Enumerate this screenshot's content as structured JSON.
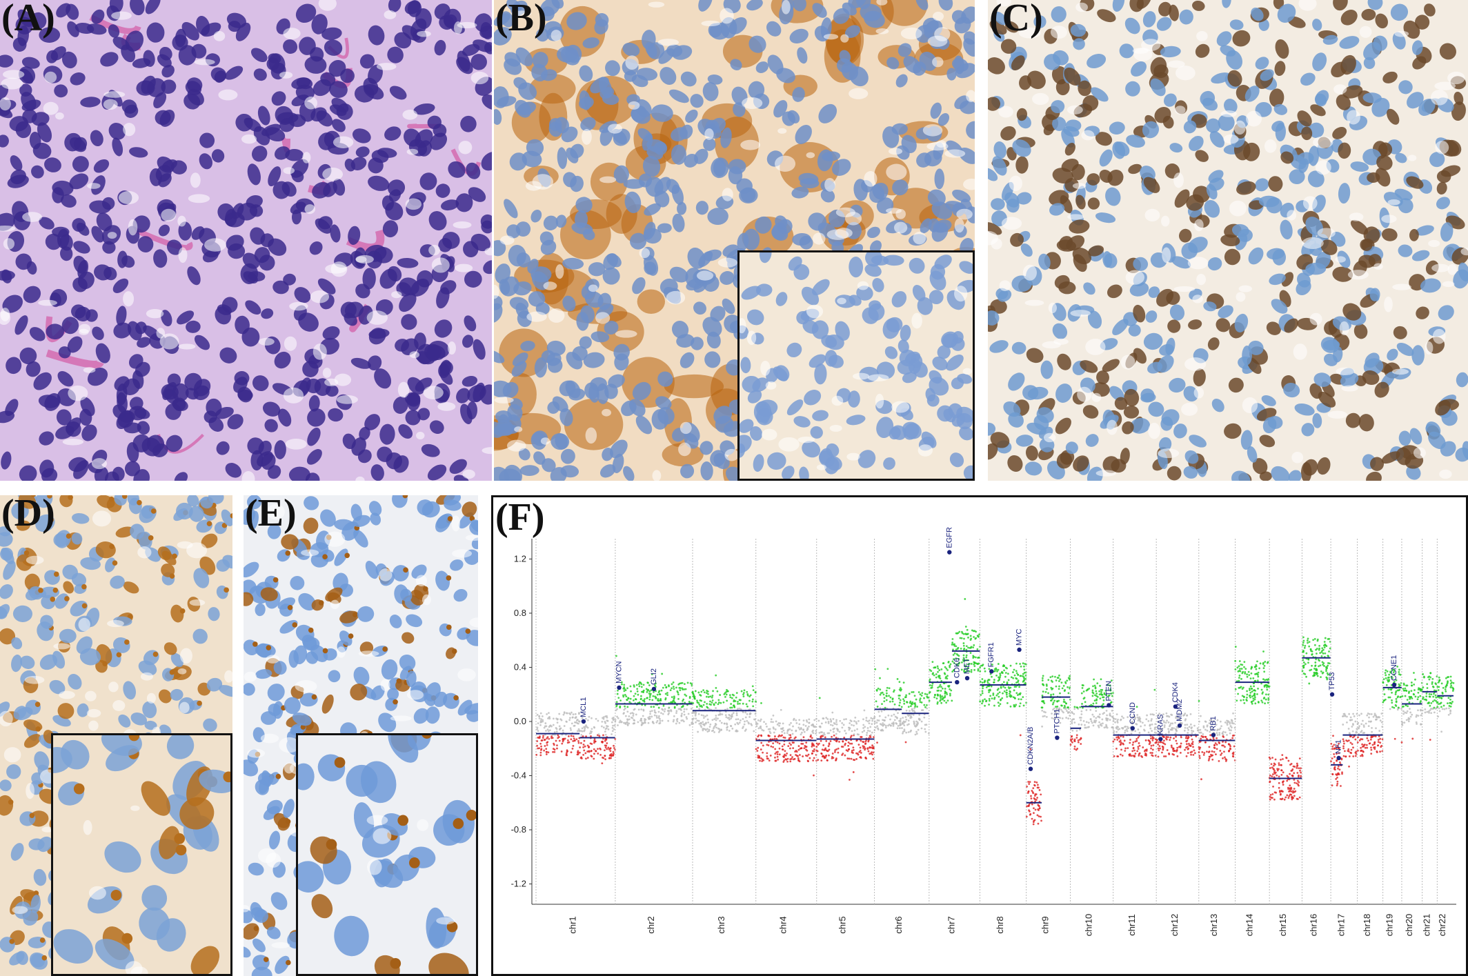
{
  "panels": {
    "A": {
      "letter": "(A)",
      "stain": "H&E",
      "colors": {
        "bg": "#d9bfe6",
        "nuclei": "#3b2a8c",
        "stroma": "#d24a9a"
      }
    },
    "B": {
      "letter": "(B)",
      "stain": "IHC",
      "colors": {
        "bg": "#f1dcc2",
        "positive": "#b8640f",
        "nuclei": "#6f8fc8"
      },
      "inset": true
    },
    "C": {
      "letter": "(C)",
      "stain": "IHC",
      "colors": {
        "bg": "#f3ece2",
        "positive": "#6b4a2b",
        "nuclei": "#6f9bd0"
      }
    },
    "D": {
      "letter": "(D)",
      "stain": "IHC",
      "colors": {
        "bg": "#f0e1cc",
        "positive": "#b56e1d",
        "nuclei": "#7ba2d6"
      },
      "inset": true
    },
    "E": {
      "letter": "(E)",
      "stain": "IHC",
      "colors": {
        "bg": "#eef0f4",
        "positive": "#a45f16",
        "nuclei": "#6f9ad8"
      },
      "inset": true
    },
    "F": {
      "letter": "(F)"
    }
  },
  "chart_data": {
    "type": "scatter",
    "title": "",
    "xlabel": "",
    "ylabel": "",
    "ylim": [
      -1.35,
      1.35
    ],
    "yticks": [
      "1.2",
      "0.8",
      "0.4",
      "0.0",
      "-0.4",
      "-0.8",
      "-1.2"
    ],
    "ytick_values": [
      1.2,
      0.8,
      0.4,
      0.0,
      -0.4,
      -0.8,
      -1.2
    ],
    "colors": {
      "gain": "#22cc22",
      "loss": "#dd2222",
      "neutral": "#bbbbbb",
      "segment": "#1a237e",
      "gene": "#1a237e"
    },
    "chromosomes": [
      {
        "name": "chr1",
        "size": 248,
        "segments": [
          {
            "from": 0,
            "to": 0.55,
            "value": -0.09
          },
          {
            "from": 0.55,
            "to": 1,
            "value": -0.12
          }
        ]
      },
      {
        "name": "chr2",
        "size": 242,
        "segments": [
          {
            "from": 0,
            "to": 1,
            "value": 0.13
          }
        ]
      },
      {
        "name": "chr3",
        "size": 198,
        "segments": [
          {
            "from": 0,
            "to": 1,
            "value": 0.08
          }
        ]
      },
      {
        "name": "chr4",
        "size": 190,
        "segments": [
          {
            "from": 0,
            "to": 1,
            "value": -0.14
          }
        ]
      },
      {
        "name": "chr5",
        "size": 181,
        "segments": [
          {
            "from": 0,
            "to": 1,
            "value": -0.13
          }
        ]
      },
      {
        "name": "chr6",
        "size": 171,
        "segments": [
          {
            "from": 0,
            "to": 0.5,
            "value": 0.09
          },
          {
            "from": 0.5,
            "to": 1,
            "value": 0.06
          }
        ]
      },
      {
        "name": "chr7",
        "size": 159,
        "segments": [
          {
            "from": 0,
            "to": 0.45,
            "value": 0.29
          },
          {
            "from": 0.45,
            "to": 1,
            "value": 0.52
          }
        ]
      },
      {
        "name": "chr8",
        "size": 145,
        "segments": [
          {
            "from": 0,
            "to": 1,
            "value": 0.27
          }
        ]
      },
      {
        "name": "chr9",
        "size": 138,
        "segments": [
          {
            "from": 0,
            "to": 0.35,
            "value": -0.6
          },
          {
            "from": 0.35,
            "to": 1,
            "value": 0.18
          }
        ]
      },
      {
        "name": "chr10",
        "size": 134,
        "segments": [
          {
            "from": 0,
            "to": 0.25,
            "value": -0.05
          },
          {
            "from": 0.25,
            "to": 1,
            "value": 0.11
          }
        ]
      },
      {
        "name": "chr11",
        "size": 135,
        "segments": [
          {
            "from": 0,
            "to": 1,
            "value": -0.1
          }
        ]
      },
      {
        "name": "chr12",
        "size": 133,
        "segments": [
          {
            "from": 0,
            "to": 1,
            "value": -0.1
          }
        ]
      },
      {
        "name": "chr13",
        "size": 114,
        "segments": [
          {
            "from": 0,
            "to": 1,
            "value": -0.14
          }
        ]
      },
      {
        "name": "chr14",
        "size": 107,
        "segments": [
          {
            "from": 0,
            "to": 1,
            "value": 0.29
          }
        ]
      },
      {
        "name": "chr15",
        "size": 102,
        "segments": [
          {
            "from": 0,
            "to": 1,
            "value": -0.42
          }
        ]
      },
      {
        "name": "chr16",
        "size": 90,
        "segments": [
          {
            "from": 0,
            "to": 1,
            "value": 0.47
          }
        ]
      },
      {
        "name": "chr17",
        "size": 83,
        "segments": [
          {
            "from": 0,
            "to": 0.45,
            "value": -0.32
          },
          {
            "from": 0.45,
            "to": 1,
            "value": -0.1
          }
        ]
      },
      {
        "name": "chr18",
        "size": 80,
        "segments": [
          {
            "from": 0,
            "to": 1,
            "value": -0.1
          }
        ]
      },
      {
        "name": "chr19",
        "size": 59,
        "segments": [
          {
            "from": 0,
            "to": 1,
            "value": 0.25
          }
        ]
      },
      {
        "name": "chr20",
        "size": 64,
        "segments": [
          {
            "from": 0,
            "to": 1,
            "value": 0.13
          }
        ]
      },
      {
        "name": "chr21",
        "size": 47,
        "segments": [
          {
            "from": 0,
            "to": 1,
            "value": 0.22
          }
        ]
      },
      {
        "name": "chr22",
        "size": 51,
        "segments": [
          {
            "from": 0,
            "to": 1,
            "value": 0.19
          }
        ]
      }
    ],
    "genes": [
      {
        "name": "MCL1",
        "chr": "chr1",
        "pos": 0.6,
        "value": 0.0
      },
      {
        "name": "MYCN",
        "chr": "chr2",
        "pos": 0.05,
        "value": 0.25
      },
      {
        "name": "GLI2",
        "chr": "chr2",
        "pos": 0.5,
        "value": 0.24
      },
      {
        "name": "CDK6",
        "chr": "chr7",
        "pos": 0.55,
        "value": 0.29
      },
      {
        "name": "EGFR",
        "chr": "chr7",
        "pos": 0.4,
        "value": 1.25
      },
      {
        "name": "MET",
        "chr": "chr7",
        "pos": 0.75,
        "value": 0.32
      },
      {
        "name": "FGFR1",
        "chr": "chr8",
        "pos": 0.25,
        "value": 0.37
      },
      {
        "name": "MYC",
        "chr": "chr8",
        "pos": 0.85,
        "value": 0.53
      },
      {
        "name": "CDKN2A/B",
        "chr": "chr9",
        "pos": 0.1,
        "value": -0.35
      },
      {
        "name": "PTCH1",
        "chr": "chr9",
        "pos": 0.7,
        "value": -0.12
      },
      {
        "name": "PTEN",
        "chr": "chr10",
        "pos": 0.9,
        "value": 0.12
      },
      {
        "name": "CCND",
        "chr": "chr11",
        "pos": 0.45,
        "value": -0.05
      },
      {
        "name": "KRAS",
        "chr": "chr12",
        "pos": 0.1,
        "value": -0.13
      },
      {
        "name": "MDM2",
        "chr": "chr12",
        "pos": 0.55,
        "value": -0.03
      },
      {
        "name": "CDK4",
        "chr": "chr12",
        "pos": 0.45,
        "value": 0.11
      },
      {
        "name": "RB1",
        "chr": "chr13",
        "pos": 0.4,
        "value": -0.1
      },
      {
        "name": "TP53",
        "chr": "chr17",
        "pos": 0.05,
        "value": 0.2
      },
      {
        "name": "NF1",
        "chr": "chr17",
        "pos": 0.3,
        "value": -0.27
      },
      {
        "name": "CCNE1",
        "chr": "chr19",
        "pos": 0.6,
        "value": 0.27
      }
    ]
  }
}
